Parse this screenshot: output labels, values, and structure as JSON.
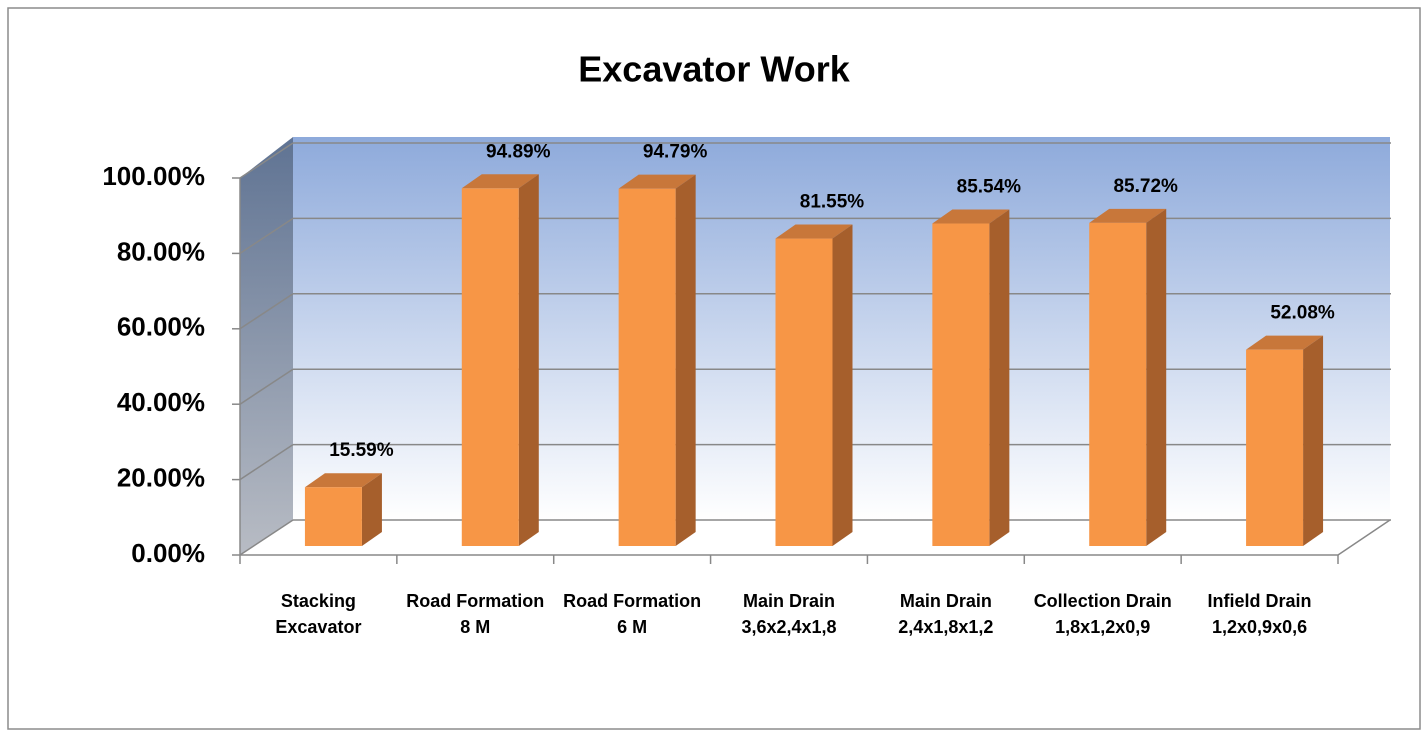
{
  "chart_data": {
    "type": "bar",
    "title": "Excavator Work",
    "categories": [
      "Stacking Excavator",
      "Road Formation 8 M",
      "Road Formation 6 M",
      "Main Drain 3,6x2,4x1,8",
      "Main Drain 2,4x1,8x1,2",
      "Collection Drain 1,8x1,2x0,9",
      "Infield Drain 1,2x0,9x0,6"
    ],
    "values": [
      15.59,
      94.89,
      94.79,
      81.55,
      85.54,
      85.72,
      52.08
    ],
    "value_labels": [
      "15.59%",
      "94.89%",
      "94.79%",
      "81.55%",
      "85.54%",
      "85.72%",
      "52.08%"
    ],
    "color": "#f79646",
    "ylim": [
      0,
      100
    ],
    "yticks": [
      {
        "value": 0,
        "label": "0.00%"
      },
      {
        "value": 20,
        "label": "20.00%"
      },
      {
        "value": 40,
        "label": "40.00%"
      },
      {
        "value": 60,
        "label": "60.00%"
      },
      {
        "value": 80,
        "label": "80.00%"
      },
      {
        "value": 100,
        "label": "100.00%"
      }
    ],
    "grid": true
  }
}
